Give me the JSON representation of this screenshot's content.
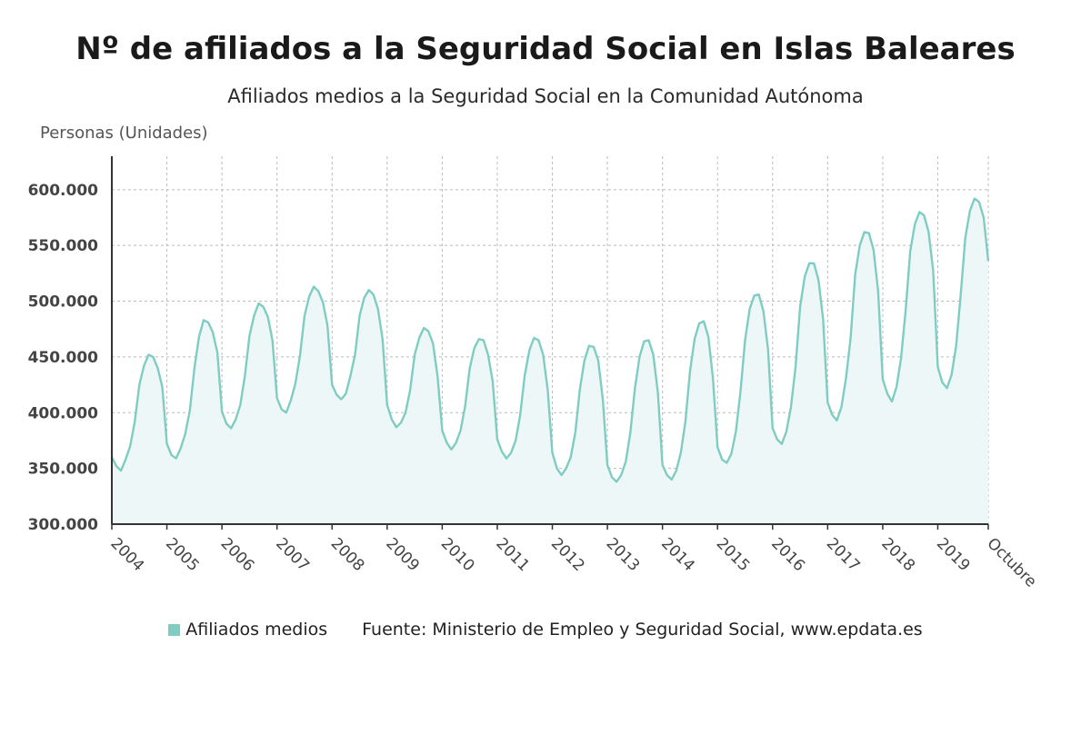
{
  "header": {
    "title": "Nº de afiliados a la Seguridad Social en Islas Baleares",
    "subtitle": "Afiliados medios a la Seguridad Social en la Comunidad Autónoma"
  },
  "footer": {
    "legend_label": "Afiliados medios",
    "source": "Fuente: Ministerio de Empleo y Seguridad Social, www.epdata.es"
  },
  "colors": {
    "line": "#7fcdc2",
    "fill": "#eef7f8",
    "grid": "#bbbbbb",
    "axis": "#333333"
  },
  "chart_data": {
    "type": "area",
    "ylabel": "Personas (Unidades)",
    "ylim": [
      300000,
      630000
    ],
    "yticks": [
      300000,
      350000,
      400000,
      450000,
      500000,
      550000,
      600000
    ],
    "ytick_labels": [
      "300.000",
      "350.000",
      "400.000",
      "450.000",
      "500.000",
      "550.000",
      "600.000"
    ],
    "x_start": "2004-01",
    "x_end": "2019-10",
    "xtick_labels": [
      "2004",
      "2005",
      "2006",
      "2007",
      "2008",
      "2009",
      "2010",
      "2011",
      "2012",
      "2013",
      "2014",
      "2015",
      "2016",
      "2017",
      "2018",
      "2019",
      "Octubre"
    ],
    "grid": true,
    "series": [
      {
        "name": "Afiliados medios",
        "years": [
          {
            "year": 2004,
            "values": [
              360000,
              352000,
              348000,
              358000,
              370000,
              392000,
              425000,
              442000,
              452000,
              450000,
              440000,
              423000
            ]
          },
          {
            "year": 2005,
            "values": [
              372000,
              362000,
              359000,
              368000,
              381000,
              402000,
              440000,
              468000,
              483000,
              481000,
              472000,
              454000
            ]
          },
          {
            "year": 2006,
            "values": [
              401000,
              390000,
              386000,
              394000,
              407000,
              433000,
              469000,
              487000,
              498000,
              495000,
              486000,
              465000
            ]
          },
          {
            "year": 2007,
            "values": [
              413000,
              403000,
              400000,
              411000,
              426000,
              451000,
              487000,
              504000,
              513000,
              509000,
              499000,
              478000
            ]
          },
          {
            "year": 2008,
            "values": [
              425000,
              416000,
              412000,
              417000,
              433000,
              452000,
              487000,
              503000,
              510000,
              506000,
              493000,
              466000
            ]
          },
          {
            "year": 2009,
            "values": [
              407000,
              394000,
              387000,
              391000,
              400000,
              420000,
              452000,
              467000,
              476000,
              473000,
              462000,
              432000
            ]
          },
          {
            "year": 2010,
            "values": [
              384000,
              373000,
              367000,
              373000,
              384000,
              406000,
              440000,
              458000,
              466000,
              465000,
              452000,
              428000
            ]
          },
          {
            "year": 2011,
            "values": [
              376000,
              365000,
              359000,
              364000,
              375000,
              398000,
              434000,
              456000,
              467000,
              465000,
              452000,
              420000
            ]
          },
          {
            "year": 2012,
            "values": [
              364000,
              350000,
              344000,
              350000,
              360000,
              382000,
              421000,
              447000,
              460000,
              459000,
              447000,
              412000
            ]
          },
          {
            "year": 2013,
            "values": [
              353000,
              342000,
              338000,
              344000,
              356000,
              382000,
              422000,
              450000,
              464000,
              465000,
              452000,
              418000
            ]
          },
          {
            "year": 2014,
            "values": [
              353000,
              344000,
              340000,
              348000,
              364000,
              392000,
              437000,
              466000,
              480000,
              482000,
              468000,
              431000
            ]
          },
          {
            "year": 2015,
            "values": [
              369000,
              358000,
              355000,
              363000,
              383000,
              419000,
              465000,
              493000,
              505000,
              506000,
              491000,
              457000
            ]
          },
          {
            "year": 2016,
            "values": [
              386000,
              376000,
              372000,
              383000,
              405000,
              441000,
              495000,
              522000,
              534000,
              534000,
              519000,
              484000
            ]
          },
          {
            "year": 2017,
            "values": [
              409000,
              398000,
              393000,
              405000,
              431000,
              467000,
              524000,
              550000,
              562000,
              561000,
              546000,
              509000
            ]
          },
          {
            "year": 2018,
            "values": [
              430000,
              417000,
              410000,
              423000,
              449000,
              492000,
              545000,
              569000,
              580000,
              577000,
              562000,
              527000
            ]
          },
          {
            "year": 2019,
            "values": [
              441000,
              427000,
              422000,
              434000,
              460000,
              506000,
              557000,
              581000,
              592000,
              589000,
              575000,
              536000
            ]
          }
        ]
      }
    ]
  }
}
